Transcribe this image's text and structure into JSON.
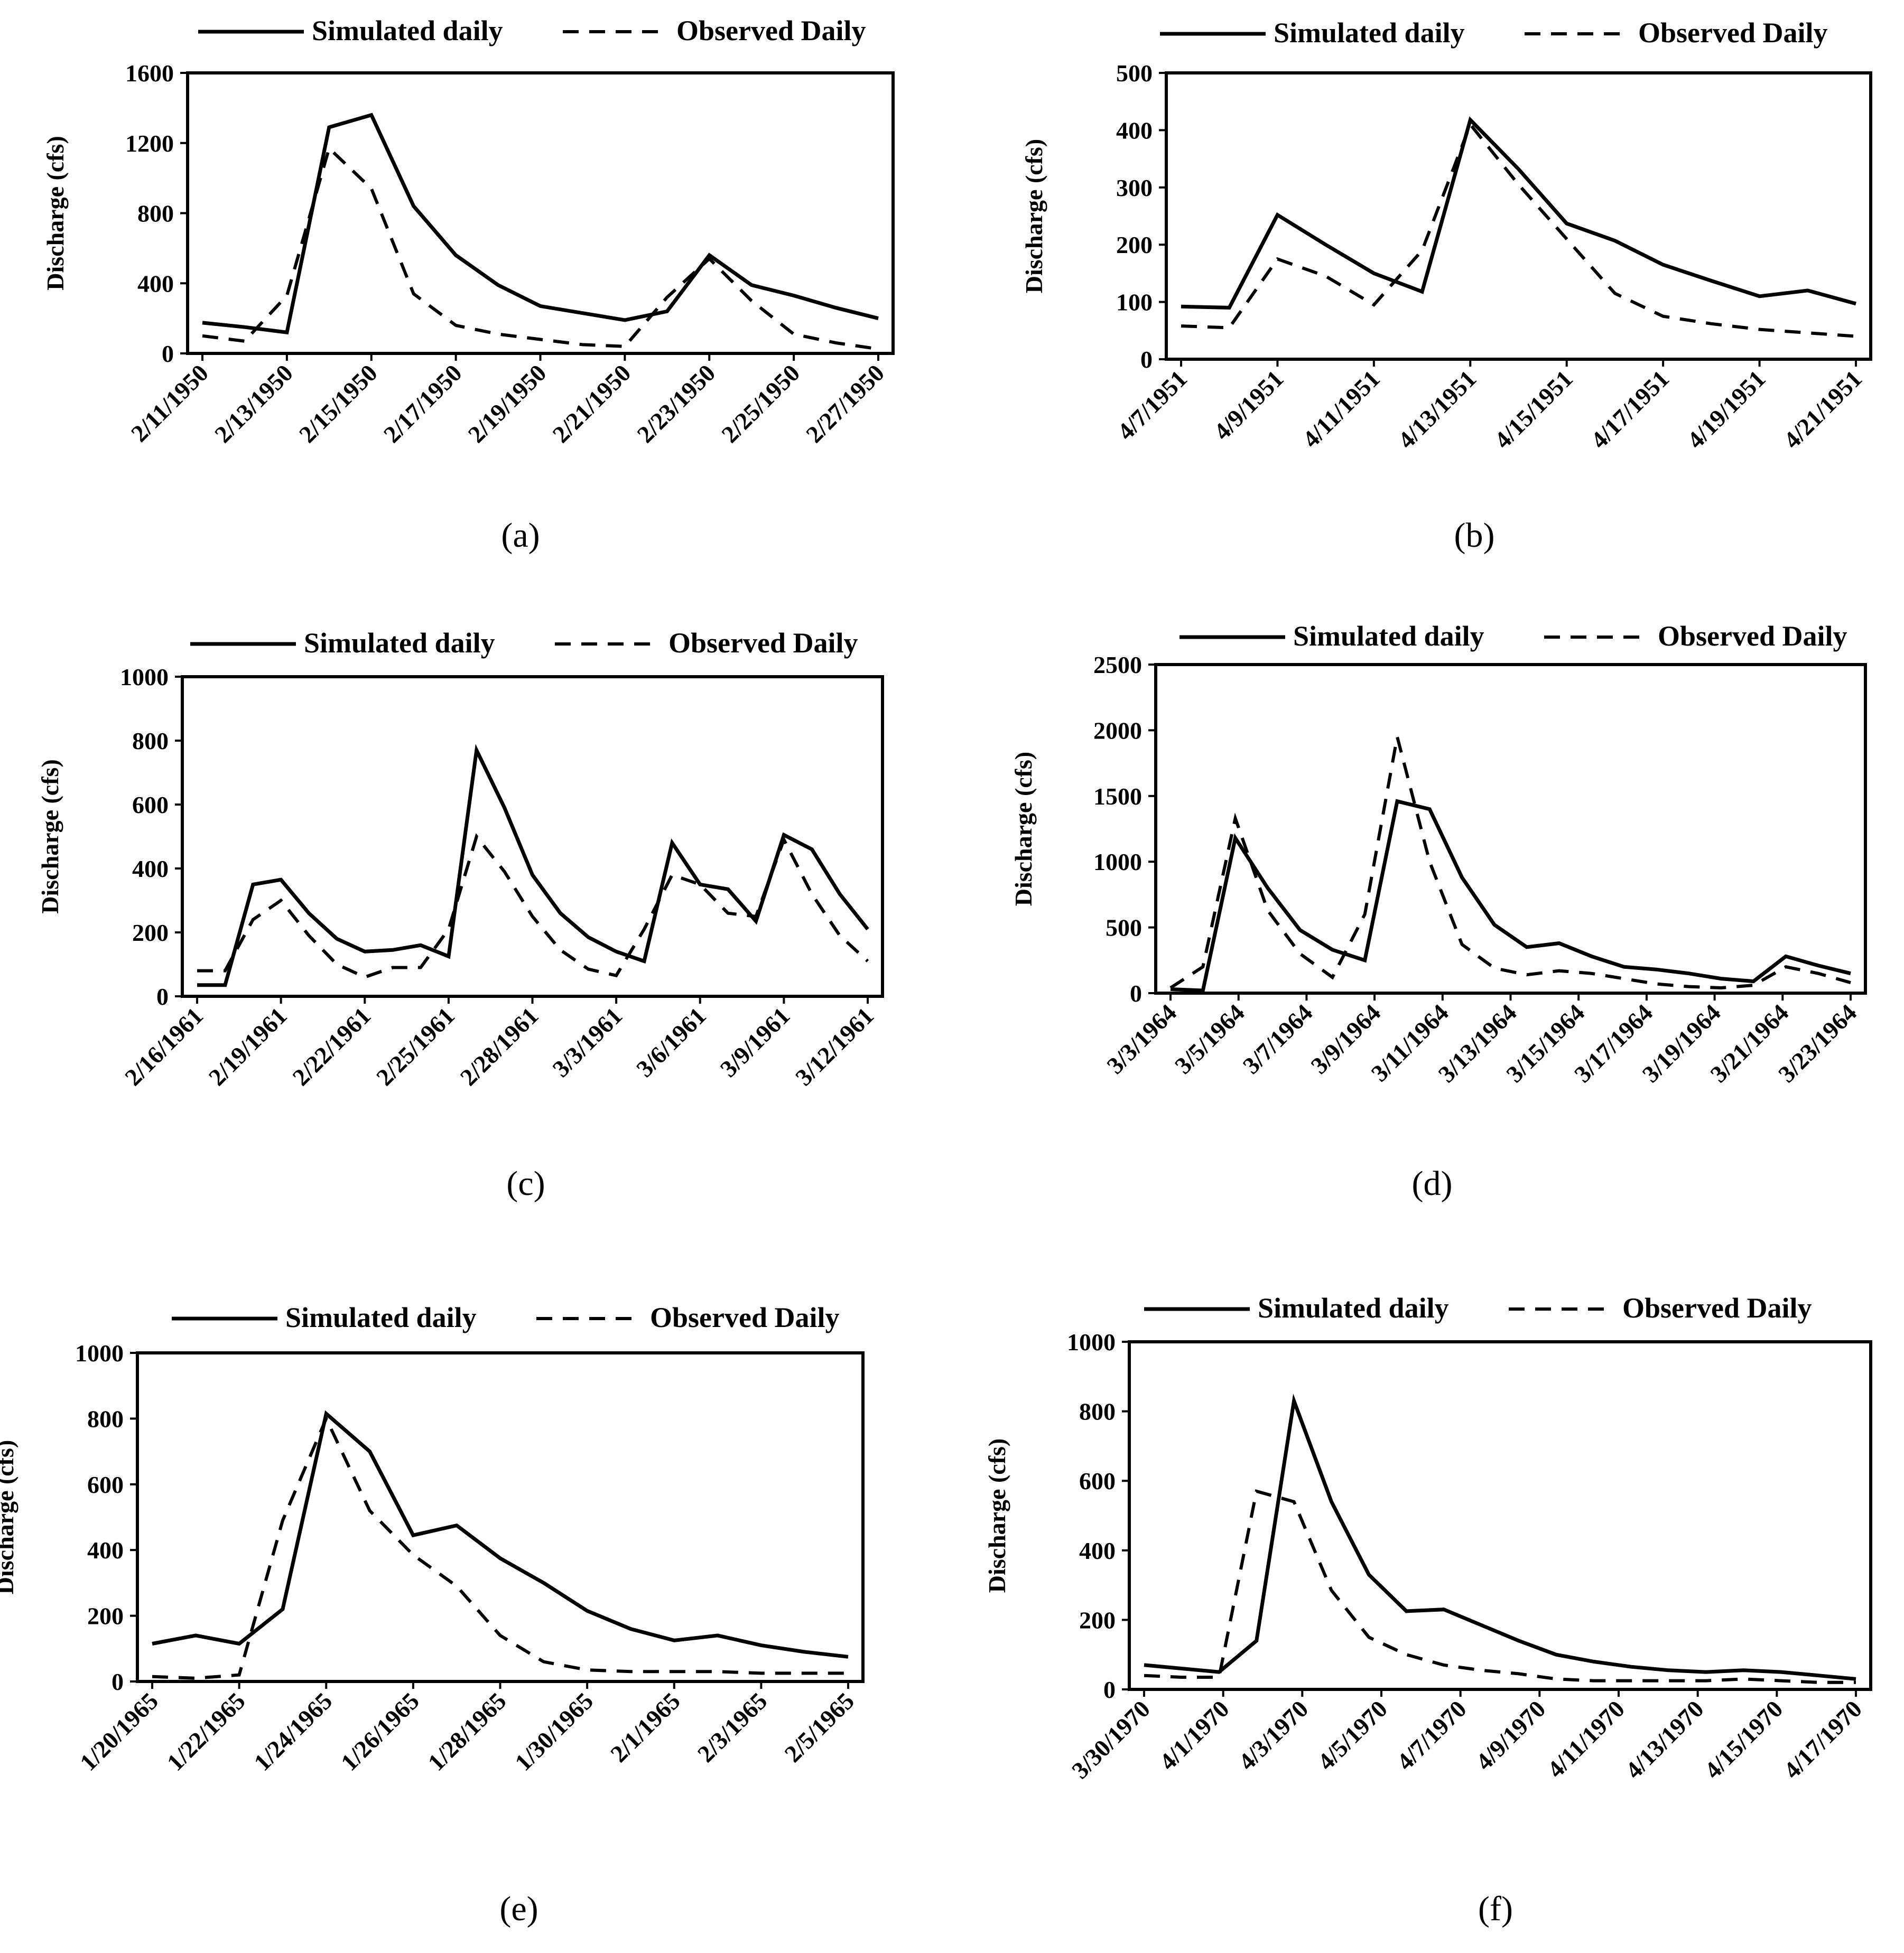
{
  "chart_data": [
    {
      "type": "line",
      "caption": "(a)",
      "ylabel": "Discharge (cfs)",
      "ylim": [
        0,
        1600
      ],
      "yticks": [
        0,
        400,
        800,
        1200,
        1600
      ],
      "tick_labels": [
        "2/11/1950",
        "2/13/1950",
        "2/15/1950",
        "2/17/1950",
        "2/19/1950",
        "2/21/1950",
        "2/23/1950",
        "2/25/1950",
        "2/27/1950"
      ],
      "legend": [
        "Simulated daily",
        "Observed Daily"
      ],
      "series": [
        {
          "name": "Simulated daily",
          "values": [
            175,
            150,
            120,
            1290,
            1360,
            840,
            560,
            390,
            270,
            230,
            190,
            240,
            560,
            390,
            330,
            260,
            200
          ]
        },
        {
          "name": "Observed Daily",
          "values": [
            100,
            70,
            330,
            1170,
            940,
            340,
            160,
            110,
            80,
            50,
            40,
            320,
            540,
            300,
            110,
            60,
            25
          ]
        }
      ]
    },
    {
      "type": "line",
      "caption": "(b)",
      "ylabel": "Discharge (cfs)",
      "ylim": [
        0,
        500
      ],
      "yticks": [
        0,
        100,
        200,
        300,
        400,
        500
      ],
      "tick_labels": [
        "4/7/1951",
        "4/9/1951",
        "4/11/1951",
        "4/13/1951",
        "4/15/1951",
        "4/17/1951",
        "4/19/1951",
        "4/21/1951"
      ],
      "legend": [
        "Simulated daily",
        "Observed Daily"
      ],
      "series": [
        {
          "name": "Simulated daily",
          "values": [
            92,
            90,
            252,
            200,
            150,
            118,
            418,
            332,
            237,
            207,
            165,
            137,
            110,
            120,
            97
          ]
        },
        {
          "name": "Observed Daily",
          "values": [
            58,
            55,
            175,
            145,
            95,
            190,
            410,
            305,
            210,
            115,
            75,
            62,
            52,
            46,
            40
          ]
        }
      ]
    },
    {
      "type": "line",
      "caption": "(c)",
      "ylabel": "Discharge (cfs)",
      "ylim": [
        0,
        1000
      ],
      "yticks": [
        0,
        200,
        400,
        600,
        800,
        1000
      ],
      "tick_labels": [
        "2/16/1961",
        "2/19/1961",
        "2/22/1961",
        "2/25/1961",
        "2/28/1961",
        "3/3/1961",
        "3/6/1961",
        "3/9/1961",
        "3/12/1961"
      ],
      "legend": [
        "Simulated daily",
        "Observed Daily"
      ],
      "series": [
        {
          "name": "Simulated daily",
          "values": [
            35,
            35,
            350,
            365,
            260,
            180,
            140,
            145,
            160,
            125,
            770,
            590,
            380,
            260,
            185,
            140,
            110,
            480,
            350,
            335,
            235,
            505,
            460,
            320,
            210
          ]
        },
        {
          "name": "Observed Daily",
          "values": [
            80,
            80,
            240,
            300,
            190,
            100,
            60,
            90,
            90,
            210,
            500,
            390,
            250,
            145,
            85,
            65,
            210,
            380,
            350,
            260,
            250,
            490,
            320,
            190,
            110
          ]
        }
      ]
    },
    {
      "type": "line",
      "caption": "(d)",
      "ylabel": "Discharge (cfs)",
      "ylim": [
        0,
        2500
      ],
      "yticks": [
        0,
        500,
        1000,
        1500,
        2000,
        2500
      ],
      "tick_labels": [
        "3/3/1964",
        "3/5/1964",
        "3/7/1964",
        "3/9/1964",
        "3/11/1964",
        "3/13/1964",
        "3/15/1964",
        "3/17/1964",
        "3/19/1964",
        "3/21/1964",
        "3/23/1964"
      ],
      "legend": [
        "Simulated daily",
        "Observed Daily"
      ],
      "series": [
        {
          "name": "Simulated daily",
          "values": [
            30,
            20,
            1180,
            800,
            480,
            330,
            250,
            1460,
            1400,
            880,
            520,
            350,
            380,
            280,
            200,
            180,
            150,
            110,
            90,
            280,
            210,
            150
          ]
        },
        {
          "name": "Observed Daily",
          "values": [
            40,
            200,
            1330,
            630,
            300,
            120,
            600,
            1950,
            1000,
            370,
            190,
            140,
            170,
            150,
            110,
            70,
            50,
            40,
            60,
            200,
            150,
            80
          ]
        }
      ]
    },
    {
      "type": "line",
      "caption": "(e)",
      "ylabel": "Discharge (cfs)",
      "ylim": [
        0,
        1000
      ],
      "yticks": [
        0,
        200,
        400,
        600,
        800,
        1000
      ],
      "tick_labels": [
        "1/20/1965",
        "1/22/1965",
        "1/24/1965",
        "1/26/1965",
        "1/28/1965",
        "1/30/1965",
        "2/1/1965",
        "2/3/1965",
        "2/5/1965"
      ],
      "legend": [
        "Simulated daily",
        "Observed Daily"
      ],
      "series": [
        {
          "name": "Simulated daily",
          "values": [
            115,
            140,
            115,
            220,
            815,
            700,
            445,
            475,
            375,
            300,
            215,
            160,
            125,
            140,
            110,
            90,
            75
          ]
        },
        {
          "name": "Observed Daily",
          "values": [
            15,
            10,
            20,
            490,
            800,
            520,
            385,
            290,
            140,
            60,
            35,
            30,
            30,
            30,
            25,
            25,
            25
          ]
        }
      ]
    },
    {
      "type": "line",
      "caption": "(f)",
      "ylabel": "Discharge (cfs)",
      "ylim": [
        0,
        1000
      ],
      "yticks": [
        0,
        200,
        400,
        600,
        800,
        1000
      ],
      "tick_labels": [
        "3/30/1970",
        "4/1/1970",
        "4/3/1970",
        "4/5/1970",
        "4/7/1970",
        "4/9/1970",
        "4/11/1970",
        "4/13/1970",
        "4/15/1970",
        "4/17/1970"
      ],
      "legend": [
        "Simulated daily",
        "Observed Daily"
      ],
      "series": [
        {
          "name": "Simulated daily",
          "values": [
            70,
            60,
            50,
            140,
            830,
            540,
            330,
            225,
            230,
            185,
            140,
            100,
            80,
            65,
            55,
            50,
            55,
            50,
            40,
            30
          ]
        },
        {
          "name": "Observed Daily",
          "values": [
            40,
            35,
            35,
            570,
            540,
            285,
            150,
            100,
            70,
            55,
            45,
            30,
            25,
            25,
            25,
            25,
            30,
            25,
            20,
            20
          ]
        }
      ]
    }
  ]
}
